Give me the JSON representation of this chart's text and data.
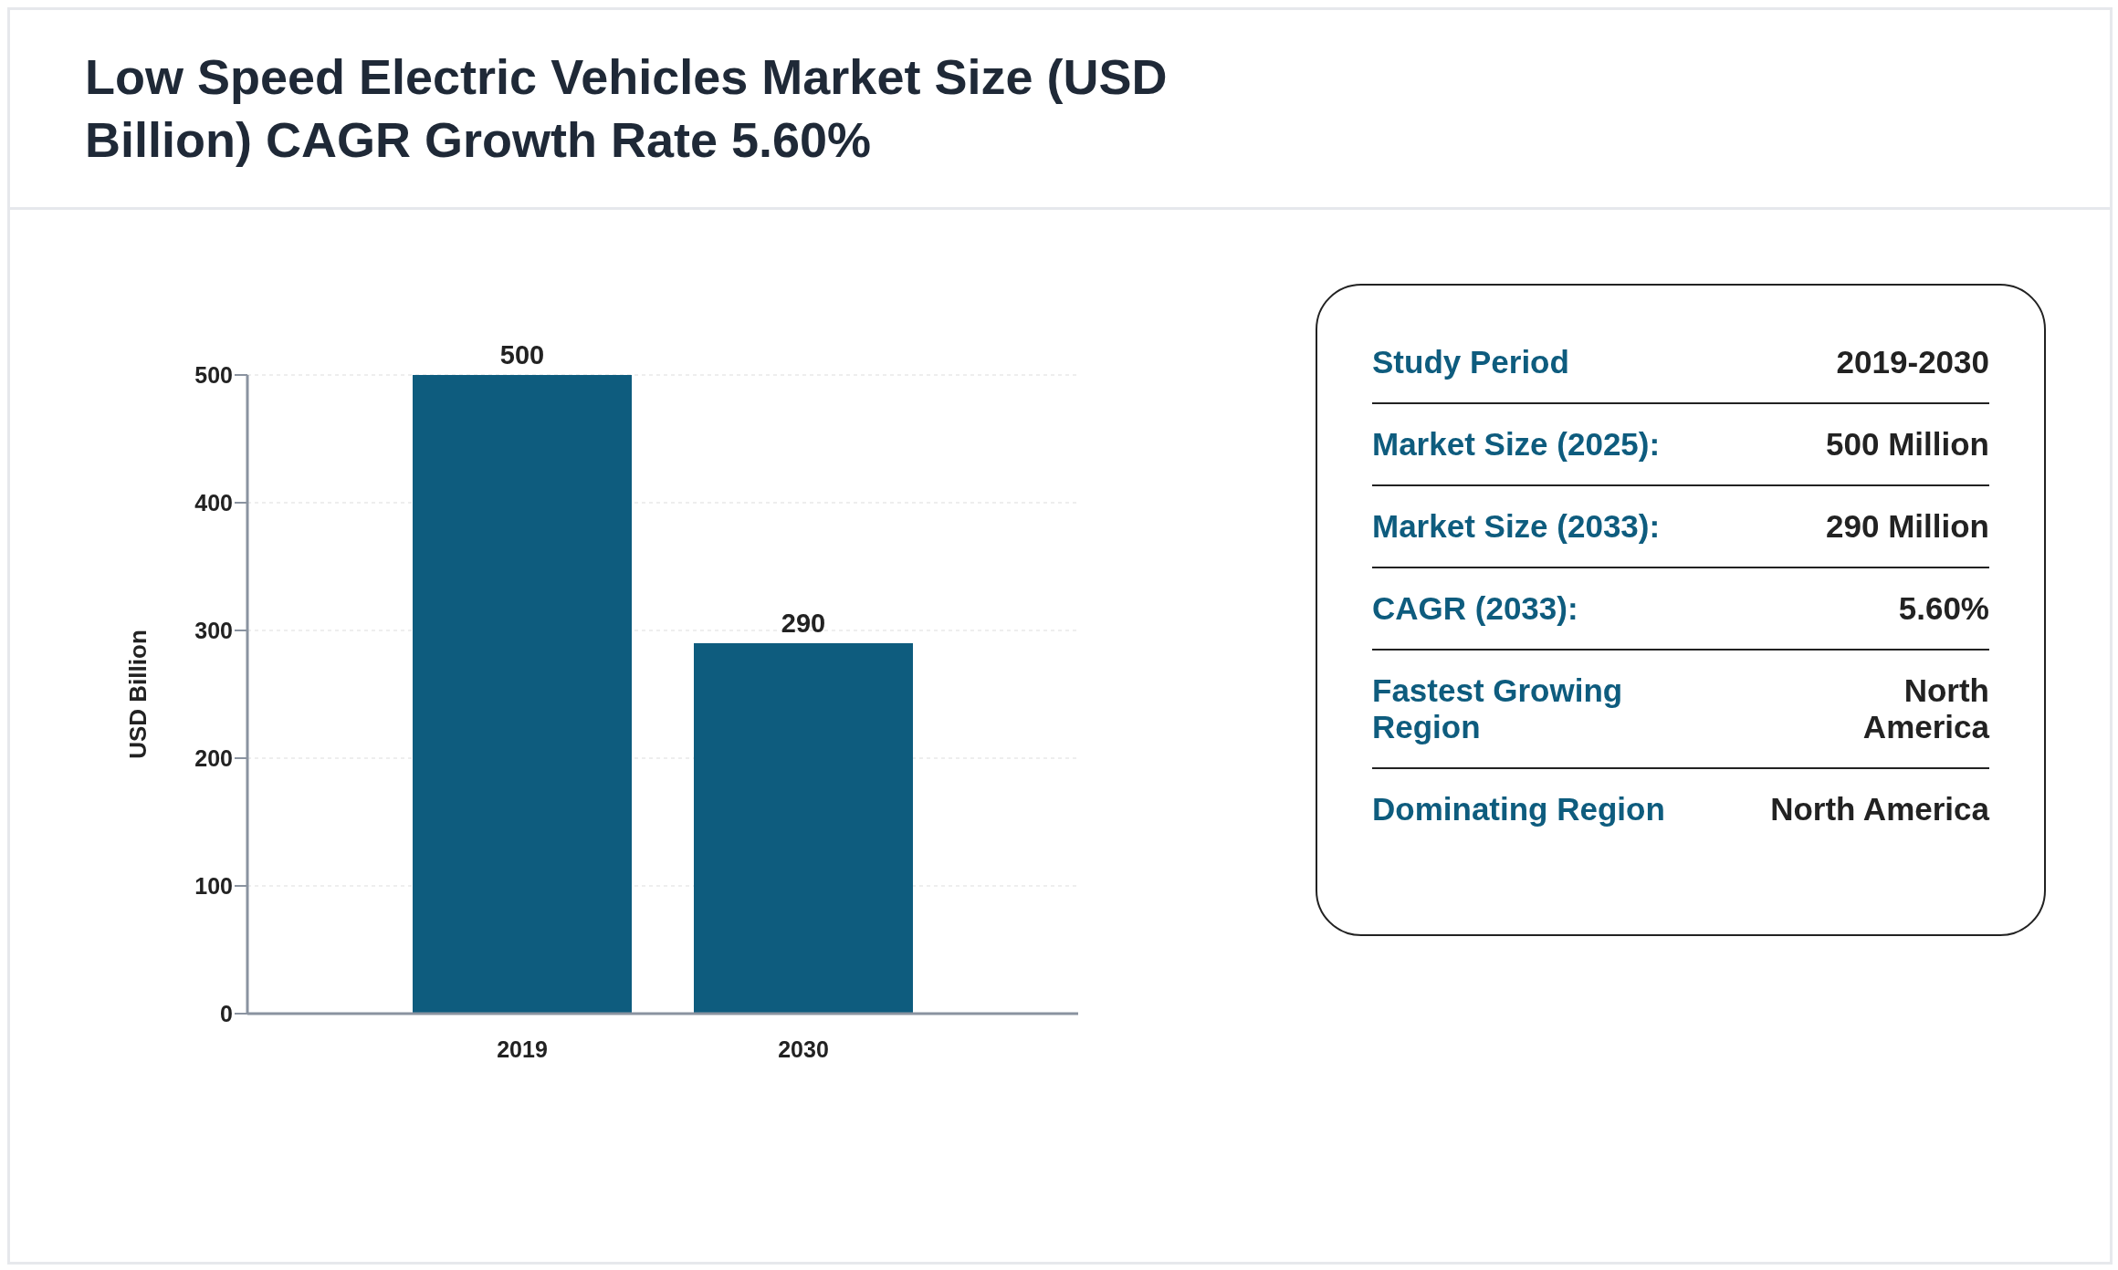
{
  "chart_data": [
    {
      "type": "bar",
      "title": "Low Speed Electric Vehicles Market Size (USD Billion) CAGR Growth Rate 5.60%",
      "ylabel": "USD Billion",
      "categories": [
        "2019",
        "2030"
      ],
      "values": [
        500,
        290
      ],
      "color": "#0e5c7e",
      "ylim": [
        0,
        500
      ],
      "yticks": [
        0,
        100,
        200,
        300,
        400,
        500
      ],
      "grid": "y",
      "data_labels": true
    },
    {
      "type": "other",
      "annotations": [
        "Study Period",
        "2019-2030",
        "Market Size (2025):",
        "500 Million",
        "Market Size (2033):",
        "290 Million",
        "CAGR (2033):",
        "5.60%",
        "Fastest Growing Region",
        "North America",
        "Dominating Region",
        "North America"
      ]
    }
  ]
}
